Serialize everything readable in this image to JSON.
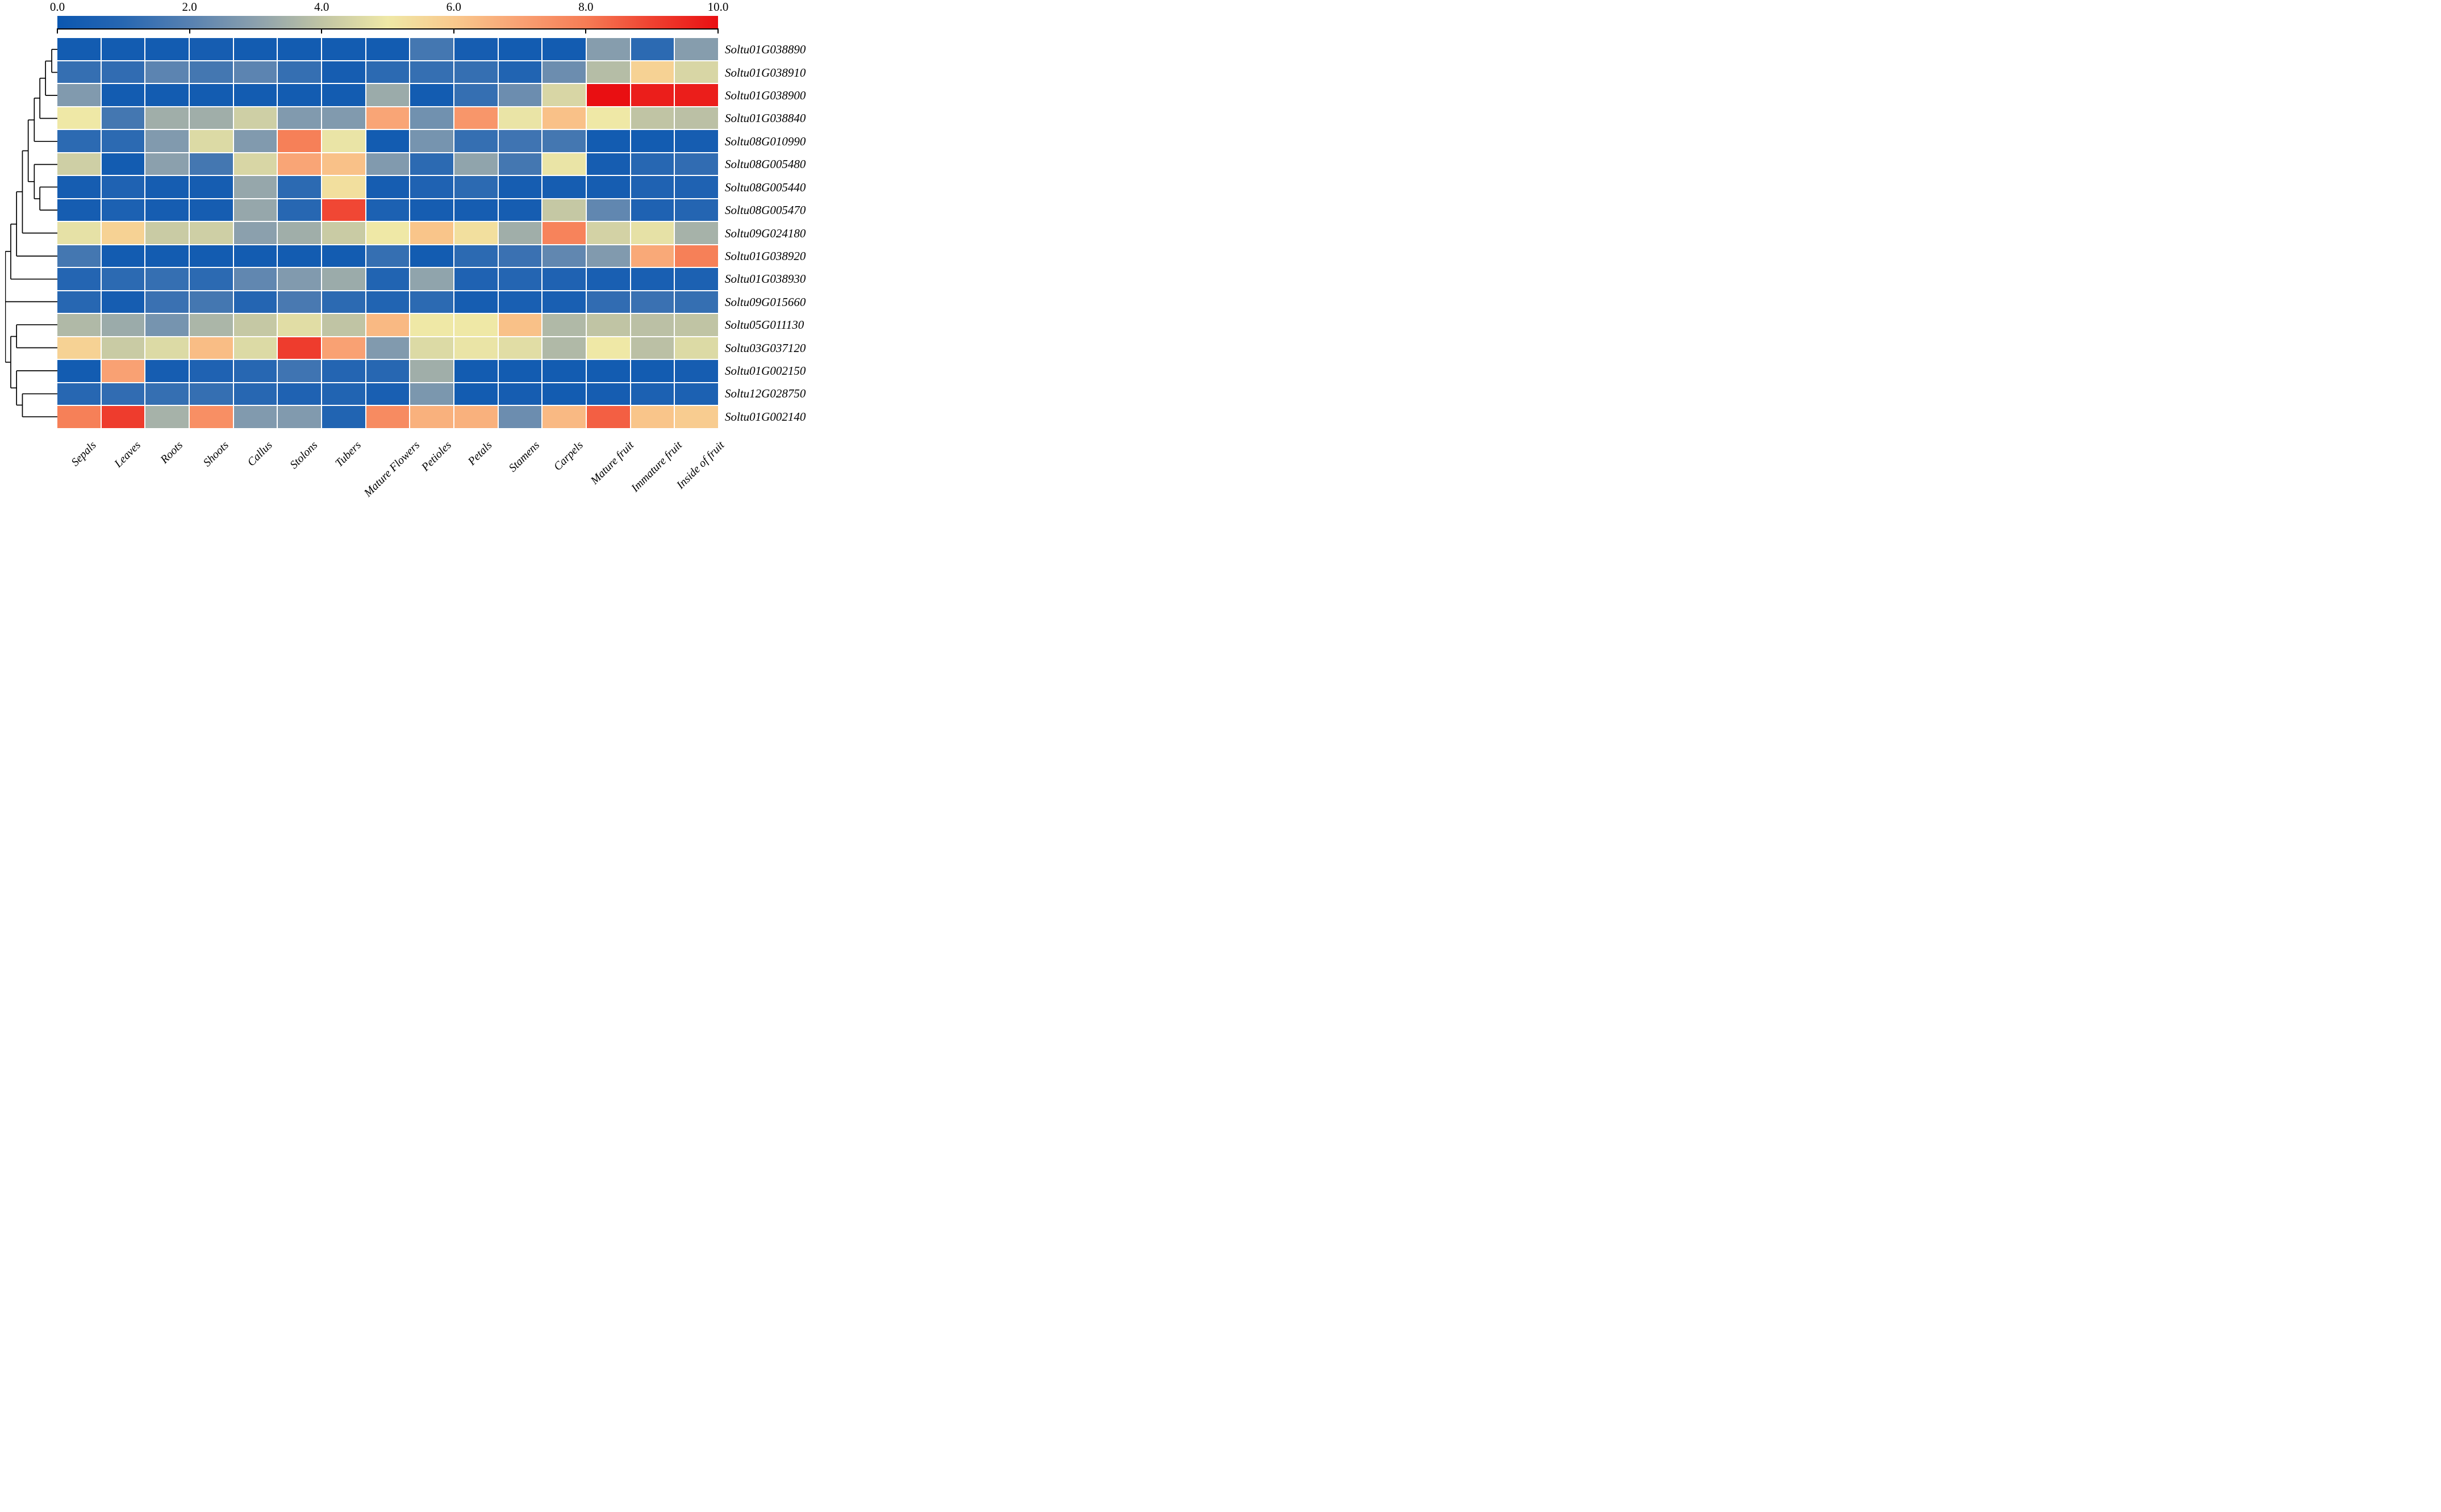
{
  "colorbar": {
    "tick_labels": [
      "0.0",
      "2.0",
      "4.0",
      "6.0",
      "8.0",
      "10.0"
    ],
    "min": 0,
    "max": 10,
    "position": "top"
  },
  "chart_data": {
    "type": "heatmap",
    "title": "",
    "xlabel": "",
    "ylabel": "",
    "value_range": [
      0,
      10
    ],
    "legend_position": "top",
    "grid": false,
    "columns": [
      "Sepals",
      "Leaves",
      "Roots",
      "Shoots",
      "Callus",
      "Stolons",
      "Tubers",
      "Mature Flowers",
      "Petioles",
      "Petals",
      "Stamens",
      "Carpels",
      "Mature fruit",
      "Immature fruit",
      "Inside of fruit"
    ],
    "rows": [
      "Soltu01G038890",
      "Soltu01G038910",
      "Soltu01G038900",
      "Soltu01G038840",
      "Soltu08G010990",
      "Soltu08G005480",
      "Soltu08G005440",
      "Soltu08G005470",
      "Soltu09G024180",
      "Soltu01G038920",
      "Soltu01G038930",
      "Soltu09G015660",
      "Soltu05G011130",
      "Soltu03G037120",
      "Soltu01G002150",
      "Soltu12G028750",
      "Soltu01G002140"
    ],
    "values": [
      [
        0.3,
        0.3,
        0.3,
        0.4,
        0.3,
        0.3,
        0.3,
        0.3,
        1.6,
        0.4,
        0.3,
        0.3,
        2.9,
        1.1,
        2.9
      ],
      [
        1.3,
        1.2,
        2.1,
        1.6,
        2.1,
        1.3,
        0.4,
        1.1,
        1.3,
        1.3,
        0.8,
        2.4,
        3.8,
        5.7,
        4.5
      ],
      [
        2.8,
        0.3,
        0.3,
        0.3,
        0.3,
        0.3,
        0.3,
        3.3,
        0.3,
        1.3,
        2.4,
        4.5,
        10.0,
        9.7,
        9.7
      ],
      [
        5.0,
        1.6,
        3.4,
        3.4,
        4.3,
        2.8,
        2.8,
        6.9,
        2.5,
        7.3,
        4.9,
        6.2,
        5.0,
        4.0,
        3.9
      ],
      [
        1.1,
        1.1,
        2.8,
        4.6,
        2.8,
        7.9,
        4.9,
        0.3,
        2.6,
        1.3,
        1.5,
        1.6,
        0.3,
        0.3,
        0.4
      ],
      [
        4.3,
        0.3,
        3.0,
        1.6,
        4.5,
        6.9,
        6.2,
        2.8,
        1.1,
        3.1,
        1.6,
        4.9,
        0.4,
        1.0,
        1.2
      ],
      [
        0.4,
        0.7,
        0.4,
        0.4,
        3.2,
        1.1,
        5.3,
        0.4,
        0.7,
        1.1,
        0.4,
        0.4,
        0.4,
        0.7,
        0.7
      ],
      [
        0.4,
        0.6,
        0.4,
        0.4,
        3.2,
        1.0,
        8.9,
        0.6,
        0.4,
        0.4,
        0.4,
        4.1,
        2.2,
        0.7,
        0.9
      ],
      [
        4.8,
        5.7,
        4.2,
        4.3,
        3.0,
        3.4,
        4.2,
        5.0,
        6.1,
        5.3,
        3.4,
        7.8,
        4.4,
        4.8,
        3.5
      ],
      [
        1.6,
        0.3,
        0.3,
        0.3,
        0.3,
        0.3,
        0.3,
        1.3,
        0.3,
        1.1,
        1.4,
        2.2,
        2.8,
        6.8,
        7.9
      ],
      [
        0.9,
        1.1,
        1.3,
        1.1,
        2.2,
        2.8,
        3.3,
        0.8,
        3.1,
        0.7,
        0.9,
        0.7,
        0.5,
        0.5,
        0.6
      ],
      [
        1.0,
        0.4,
        1.4,
        1.6,
        0.9,
        1.7,
        1.1,
        0.8,
        1.1,
        0.4,
        0.5,
        0.5,
        1.2,
        1.4,
        1.3
      ],
      [
        3.7,
        3.3,
        2.6,
        3.6,
        4.1,
        4.7,
        4.0,
        6.4,
        5.0,
        5.0,
        6.2,
        3.7,
        4.0,
        3.9,
        4.0
      ],
      [
        5.7,
        4.2,
        4.6,
        6.3,
        4.6,
        9.1,
        7.0,
        2.8,
        4.6,
        4.9,
        4.7,
        3.7,
        5.0,
        3.9,
        4.6
      ],
      [
        0.3,
        7.0,
        0.4,
        0.7,
        1.0,
        1.5,
        0.9,
        1.0,
        3.4,
        0.3,
        0.3,
        0.3,
        0.3,
        0.3,
        0.4
      ],
      [
        1.0,
        1.2,
        1.3,
        1.3,
        1.0,
        0.7,
        0.8,
        0.5,
        2.7,
        0.3,
        0.4,
        0.3,
        0.4,
        0.6,
        0.6
      ],
      [
        7.9,
        9.1,
        3.5,
        7.5,
        2.8,
        2.8,
        0.8,
        7.6,
        6.6,
        6.6,
        2.4,
        6.4,
        8.5,
        6.1,
        5.9
      ]
    ],
    "colormap_stops": [
      "#0b57b1",
      "#2767b2",
      "#5781b1",
      "#8ba0ad",
      "#c0c4a4",
      "#efe8a6",
      "#f9c98d",
      "#f9a173",
      "#f67c55",
      "#ef4130",
      "#e90f12"
    ],
    "row_dendrogram_segments": [
      [
        100,
        2.9,
        89.2,
        2.9
      ],
      [
        100,
        8.8,
        89.2,
        8.8
      ],
      [
        89.2,
        2.9,
        89.2,
        8.8
      ],
      [
        89.2,
        5.9,
        77.3,
        5.9
      ],
      [
        100,
        14.7,
        77.3,
        14.7
      ],
      [
        77.3,
        5.9,
        77.3,
        14.7
      ],
      [
        77.3,
        10.3,
        66.5,
        10.3
      ],
      [
        100,
        20.6,
        66.5,
        20.6
      ],
      [
        66.5,
        10.3,
        66.5,
        20.6
      ],
      [
        66.5,
        15.4,
        55.8,
        15.4
      ],
      [
        100,
        26.5,
        55.8,
        26.5
      ],
      [
        55.8,
        15.4,
        55.8,
        26.5
      ],
      [
        55.8,
        21.0,
        44.2,
        21.0
      ],
      [
        100,
        32.4,
        55.8,
        32.4
      ],
      [
        100,
        38.2,
        66.5,
        38.2
      ],
      [
        100,
        44.1,
        66.5,
        44.1
      ],
      [
        66.5,
        38.2,
        66.5,
        44.1
      ],
      [
        66.5,
        41.2,
        55.8,
        41.2
      ],
      [
        55.8,
        32.4,
        55.8,
        41.2
      ],
      [
        55.8,
        36.8,
        44.2,
        36.8
      ],
      [
        44.2,
        21.0,
        44.2,
        36.8
      ],
      [
        44.2,
        28.9,
        33.1,
        28.9
      ],
      [
        100,
        50,
        33.1,
        50
      ],
      [
        33.1,
        28.9,
        33.1,
        50
      ],
      [
        33.1,
        39.4,
        21.9,
        39.4
      ],
      [
        100,
        55.9,
        21.9,
        55.9
      ],
      [
        21.9,
        39.4,
        21.9,
        55.9
      ],
      [
        21.9,
        47.7,
        10.8,
        47.7
      ],
      [
        100,
        61.8,
        10.8,
        61.8
      ],
      [
        10.8,
        47.7,
        10.8,
        61.8
      ],
      [
        10.8,
        54.7,
        0.5,
        54.7
      ],
      [
        100,
        67.6,
        0.5,
        67.6
      ],
      [
        100,
        73.5,
        21.9,
        73.5
      ],
      [
        100,
        79.4,
        21.9,
        79.4
      ],
      [
        21.9,
        73.5,
        21.9,
        79.4
      ],
      [
        21.9,
        76.5,
        10.8,
        76.5
      ],
      [
        100,
        85.3,
        21.9,
        85.3
      ],
      [
        100,
        91.2,
        33.1,
        91.2
      ],
      [
        100,
        97.1,
        33.1,
        97.1
      ],
      [
        33.1,
        91.2,
        33.1,
        97.1
      ],
      [
        33.1,
        94.1,
        21.9,
        94.1
      ],
      [
        21.9,
        85.3,
        21.9,
        94.1
      ],
      [
        21.9,
        89.7,
        10.8,
        89.7
      ],
      [
        10.8,
        76.5,
        10.8,
        89.7
      ],
      [
        10.8,
        83.1,
        0.5,
        83.1
      ],
      [
        0.5,
        54.7,
        0.5,
        83.1
      ]
    ]
  }
}
